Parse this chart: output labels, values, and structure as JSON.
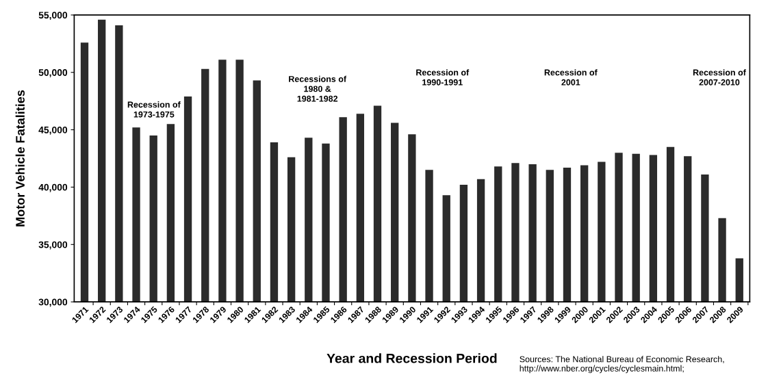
{
  "chart_data": {
    "type": "bar",
    "xlabel": "Year and Recession Period",
    "ylabel": "Motor Vehicle Fatalities",
    "categories": [
      "1971",
      "1972",
      "1973",
      "1974",
      "1975",
      "1976",
      "1977",
      "1978",
      "1979",
      "1980",
      "1981",
      "1982",
      "1983",
      "1984",
      "1985",
      "1986",
      "1987",
      "1988",
      "1989",
      "1990",
      "1991",
      "1992",
      "1993",
      "1994",
      "1995",
      "1996",
      "1997",
      "1998",
      "1999",
      "2000",
      "2001",
      "2002",
      "2003",
      "2004",
      "2005",
      "2006",
      "2007",
      "2008",
      "2009"
    ],
    "values": [
      52600,
      54600,
      54100,
      45200,
      44500,
      45500,
      47900,
      50300,
      51100,
      51100,
      49300,
      43900,
      42600,
      44300,
      43800,
      46100,
      46400,
      47100,
      45600,
      44600,
      41500,
      39300,
      40200,
      40700,
      41800,
      42100,
      42000,
      41500,
      41700,
      41900,
      42200,
      43000,
      42900,
      42800,
      43500,
      42700,
      41100,
      37300,
      33800
    ],
    "color": "#2b2b2b",
    "ylim": [
      30000,
      55000
    ],
    "yticks": [
      {
        "value": 30000,
        "label": "30,000"
      },
      {
        "value": 35000,
        "label": "35,000"
      },
      {
        "value": 40000,
        "label": "40,000"
      },
      {
        "value": 45000,
        "label": "45,000"
      },
      {
        "value": 50000,
        "label": "50,000"
      },
      {
        "value": 55000,
        "label": "55,000"
      }
    ],
    "grid": false,
    "annotations": [
      "Recession of\n1973-1975",
      "Recessions of\n1980 &\n1981-1982",
      "Recession of\n1990-1991",
      "Recession of\n2001",
      "Recession of\n2007-2010",
      "Sources: The National Bureau of Economic Research,\nhttp://www.nber.org/cycles/cyclesmain.html;"
    ]
  }
}
